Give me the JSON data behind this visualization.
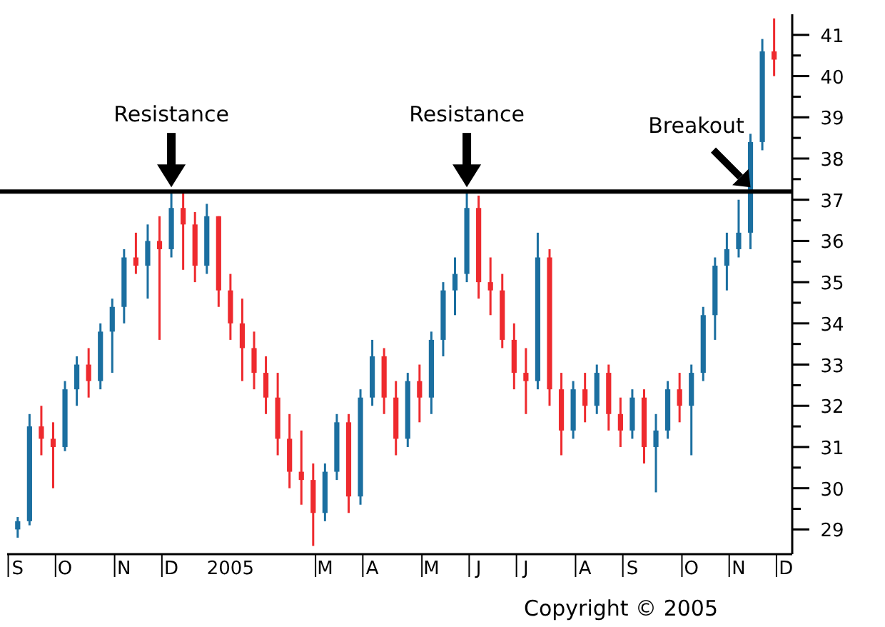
{
  "chart_data": {
    "type": "candlestick",
    "categories": [
      "S",
      null,
      null,
      null,
      "O",
      null,
      null,
      null,
      null,
      "N",
      null,
      null,
      null,
      "D",
      null,
      null,
      null,
      null,
      "2005",
      null,
      null,
      null,
      null,
      null,
      null,
      null,
      "M",
      null,
      null,
      null,
      "A",
      null,
      null,
      null,
      null,
      "M",
      null,
      null,
      null,
      "J",
      null,
      null,
      null,
      "J",
      null,
      null,
      null,
      null,
      "A",
      null,
      null,
      null,
      "S",
      null,
      null,
      null,
      null,
      "O",
      null,
      null,
      null,
      "N",
      null,
      null,
      null,
      "D"
    ],
    "ohlc": [
      [
        29.0,
        29.3,
        28.8,
        29.2
      ],
      [
        29.2,
        31.8,
        29.1,
        31.5
      ],
      [
        31.5,
        32.0,
        30.8,
        31.2
      ],
      [
        31.2,
        31.6,
        30.0,
        31.0
      ],
      [
        31.0,
        32.6,
        30.9,
        32.4
      ],
      [
        32.4,
        33.2,
        32.0,
        33.0
      ],
      [
        33.0,
        33.4,
        32.2,
        32.6
      ],
      [
        32.6,
        34.0,
        32.4,
        33.8
      ],
      [
        33.8,
        34.6,
        32.8,
        34.4
      ],
      [
        34.4,
        35.8,
        34.0,
        35.6
      ],
      [
        35.6,
        36.2,
        35.2,
        35.4
      ],
      [
        35.4,
        36.4,
        34.6,
        36.0
      ],
      [
        36.0,
        36.6,
        33.6,
        35.8
      ],
      [
        35.8,
        37.2,
        35.6,
        36.8
      ],
      [
        36.8,
        37.2,
        35.3,
        36.4
      ],
      [
        36.4,
        36.7,
        35.0,
        35.4
      ],
      [
        35.4,
        36.9,
        35.2,
        36.6
      ],
      [
        36.6,
        36.6,
        34.4,
        34.8
      ],
      [
        34.8,
        35.2,
        33.6,
        34.0
      ],
      [
        34.0,
        34.6,
        32.6,
        33.4
      ],
      [
        33.4,
        33.8,
        32.4,
        32.8
      ],
      [
        32.8,
        33.2,
        31.8,
        32.2
      ],
      [
        32.2,
        32.8,
        30.8,
        31.2
      ],
      [
        31.2,
        31.8,
        30.0,
        30.4
      ],
      [
        30.4,
        31.4,
        29.6,
        30.2
      ],
      [
        30.2,
        30.6,
        28.6,
        29.4
      ],
      [
        29.4,
        30.6,
        29.2,
        30.4
      ],
      [
        30.4,
        31.8,
        30.2,
        31.6
      ],
      [
        31.6,
        31.8,
        29.4,
        29.8
      ],
      [
        29.8,
        32.4,
        29.6,
        32.2
      ],
      [
        32.2,
        33.6,
        32.0,
        33.2
      ],
      [
        33.2,
        33.4,
        31.8,
        32.2
      ],
      [
        32.2,
        32.6,
        30.8,
        31.2
      ],
      [
        31.2,
        32.8,
        31.0,
        32.6
      ],
      [
        32.6,
        33.0,
        31.6,
        32.2
      ],
      [
        32.2,
        33.8,
        31.8,
        33.6
      ],
      [
        33.6,
        35.0,
        33.2,
        34.8
      ],
      [
        34.8,
        35.6,
        34.2,
        35.2
      ],
      [
        35.2,
        37.2,
        35.0,
        36.8
      ],
      [
        36.8,
        37.1,
        34.6,
        35.0
      ],
      [
        35.0,
        35.6,
        34.2,
        34.8
      ],
      [
        34.8,
        35.2,
        33.4,
        33.6
      ],
      [
        33.6,
        34.0,
        32.4,
        32.8
      ],
      [
        32.8,
        33.4,
        31.8,
        32.6
      ],
      [
        32.6,
        36.2,
        32.4,
        35.6
      ],
      [
        35.6,
        35.8,
        32.0,
        32.4
      ],
      [
        32.4,
        32.8,
        30.8,
        31.4
      ],
      [
        31.4,
        32.6,
        31.2,
        32.4
      ],
      [
        32.4,
        32.8,
        31.6,
        32.0
      ],
      [
        32.0,
        33.0,
        31.8,
        32.8
      ],
      [
        32.8,
        33.0,
        31.4,
        31.8
      ],
      [
        31.8,
        32.2,
        31.0,
        31.4
      ],
      [
        31.4,
        32.4,
        31.2,
        32.2
      ],
      [
        32.2,
        32.4,
        30.6,
        31.0
      ],
      [
        31.0,
        31.8,
        29.9,
        31.4
      ],
      [
        31.4,
        32.6,
        31.2,
        32.4
      ],
      [
        32.4,
        32.8,
        31.6,
        32.0
      ],
      [
        32.0,
        33.0,
        30.8,
        32.8
      ],
      [
        32.8,
        34.4,
        32.6,
        34.2
      ],
      [
        34.2,
        35.6,
        33.6,
        35.4
      ],
      [
        35.4,
        36.2,
        34.8,
        35.8
      ],
      [
        35.8,
        37.0,
        35.6,
        36.2
      ],
      [
        36.2,
        38.6,
        35.8,
        38.4
      ],
      [
        38.4,
        40.9,
        38.2,
        40.6
      ],
      [
        40.6,
        41.4,
        40.0,
        40.4
      ],
      null
    ],
    "colors": [
      "#1b6fa0",
      "#1b6fa0",
      "#ee2a2e",
      "#ee2a2e",
      "#1b6fa0",
      "#1b6fa0",
      "#ee2a2e",
      "#1b6fa0",
      "#1b6fa0",
      "#1b6fa0",
      "#ee2a2e",
      "#1b6fa0",
      "#ee2a2e",
      "#1b6fa0",
      "#ee2a2e",
      "#ee2a2e",
      "#1b6fa0",
      "#ee2a2e",
      "#ee2a2e",
      "#ee2a2e",
      "#ee2a2e",
      "#ee2a2e",
      "#ee2a2e",
      "#ee2a2e",
      "#ee2a2e",
      "#ee2a2e",
      "#1b6fa0",
      "#1b6fa0",
      "#ee2a2e",
      "#1b6fa0",
      "#1b6fa0",
      "#ee2a2e",
      "#ee2a2e",
      "#1b6fa0",
      "#ee2a2e",
      "#1b6fa0",
      "#1b6fa0",
      "#1b6fa0",
      "#1b6fa0",
      "#ee2a2e",
      "#ee2a2e",
      "#ee2a2e",
      "#ee2a2e",
      "#ee2a2e",
      "#1b6fa0",
      "#ee2a2e",
      "#ee2a2e",
      "#1b6fa0",
      "#ee2a2e",
      "#1b6fa0",
      "#ee2a2e",
      "#ee2a2e",
      "#1b6fa0",
      "#ee2a2e",
      "#1b6fa0",
      "#1b6fa0",
      "#ee2a2e",
      "#1b6fa0",
      "#1b6fa0",
      "#1b6fa0",
      "#1b6fa0",
      "#1b6fa0",
      "#1b6fa0",
      "#1b6fa0",
      "#ee2a2e",
      null
    ],
    "ylim": [
      28.4,
      41.5
    ],
    "yticks": [
      {
        "value": 29,
        "label": "29"
      },
      {
        "value": 29.5,
        "label": null
      },
      {
        "value": 30,
        "label": "30"
      },
      {
        "value": 30.5,
        "label": null
      },
      {
        "value": 31,
        "label": "31"
      },
      {
        "value": 31.5,
        "label": null
      },
      {
        "value": 32,
        "label": "32"
      },
      {
        "value": 32.5,
        "label": null
      },
      {
        "value": 33,
        "label": "33"
      },
      {
        "value": 33.5,
        "label": null
      },
      {
        "value": 34,
        "label": "34"
      },
      {
        "value": 34.5,
        "label": null
      },
      {
        "value": 35,
        "label": "35"
      },
      {
        "value": 35.5,
        "label": null
      },
      {
        "value": 36,
        "label": "36"
      },
      {
        "value": 36.5,
        "label": null
      },
      {
        "value": 37,
        "label": "37"
      },
      {
        "value": 37.5,
        "label": null
      },
      {
        "value": 38,
        "label": "38"
      },
      {
        "value": 38.5,
        "label": null
      },
      {
        "value": 39,
        "label": "39"
      },
      {
        "value": 39.5,
        "label": null
      },
      {
        "value": 40,
        "label": "40"
      },
      {
        "value": 40.5,
        "label": null
      },
      {
        "value": 41,
        "label": "41"
      }
    ],
    "grid": false,
    "ref_lines": [
      {
        "axis": "y",
        "value": 37.2,
        "color": "#000000"
      }
    ],
    "annotations": [
      {
        "text": "Resistance",
        "y": 37.2
      },
      {
        "text": "Resistance",
        "y": 37.2
      },
      {
        "text": "Breakout",
        "y": 37.2
      },
      "Copyright © 2005"
    ]
  }
}
